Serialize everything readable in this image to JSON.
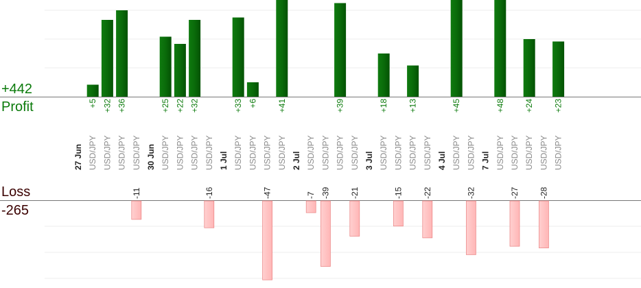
{
  "summary": {
    "profit_total": "+442",
    "profit_label": "Profit",
    "loss_label": "Loss",
    "loss_total": "-265"
  },
  "colors": {
    "profit_bar": "#0a6b0a",
    "profit_text": "#0a7a0a",
    "loss_bar": "#ffb6b6",
    "loss_bar_border": "#e98080",
    "loss_text": "#3a0000",
    "date_text": "#222222",
    "pair_text": "#8a8a8a",
    "grid": "#eeeeee",
    "axis": "#777777"
  },
  "chart_data": {
    "type": "bar",
    "columns": [
      {
        "label": "27 Jun",
        "kind": "date"
      },
      {
        "label": "USD/JPY",
        "kind": "pair",
        "value": 5
      },
      {
        "label": "USD/JPY",
        "kind": "pair",
        "value": 32
      },
      {
        "label": "USD/JPY",
        "kind": "pair",
        "value": 36
      },
      {
        "label": "USD/JPY",
        "kind": "pair",
        "value": -11
      },
      {
        "label": "30 Jun",
        "kind": "date"
      },
      {
        "label": "USD/JPY",
        "kind": "pair",
        "value": 25
      },
      {
        "label": "USD/JPY",
        "kind": "pair",
        "value": 22
      },
      {
        "label": "USD/JPY",
        "kind": "pair",
        "value": 32
      },
      {
        "label": "USD/JPY",
        "kind": "pair",
        "value": -16
      },
      {
        "label": "1 Jul",
        "kind": "date"
      },
      {
        "label": "USD/JPY",
        "kind": "pair",
        "value": 33
      },
      {
        "label": "USD/JPY",
        "kind": "pair",
        "value": 6
      },
      {
        "label": "USD/JPY",
        "kind": "pair",
        "value": -47
      },
      {
        "label": "USD/JPY",
        "kind": "pair",
        "value": 41
      },
      {
        "label": "2 Jul",
        "kind": "date"
      },
      {
        "label": "USD/JPY",
        "kind": "pair",
        "value": -7
      },
      {
        "label": "USD/JPY",
        "kind": "pair",
        "value": -39
      },
      {
        "label": "USD/JPY",
        "kind": "pair",
        "value": 39
      },
      {
        "label": "USD/JPY",
        "kind": "pair",
        "value": -21
      },
      {
        "label": "3 Jul",
        "kind": "date"
      },
      {
        "label": "USD/JPY",
        "kind": "pair",
        "value": 18
      },
      {
        "label": "USD/JPY",
        "kind": "pair",
        "value": -15
      },
      {
        "label": "USD/JPY",
        "kind": "pair",
        "value": 13
      },
      {
        "label": "USD/JPY",
        "kind": "pair",
        "value": -22
      },
      {
        "label": "4 Jul",
        "kind": "date"
      },
      {
        "label": "USD/JPY",
        "kind": "pair",
        "value": 45
      },
      {
        "label": "USD/JPY",
        "kind": "pair",
        "value": -32
      },
      {
        "label": "7 Jul",
        "kind": "date"
      },
      {
        "label": "USD/JPY",
        "kind": "pair",
        "value": 48
      },
      {
        "label": "USD/JPY",
        "kind": "pair",
        "value": -27
      },
      {
        "label": "USD/JPY",
        "kind": "pair",
        "value": 24
      },
      {
        "label": "USD/JPY",
        "kind": "pair",
        "value": -28
      },
      {
        "label": "USD/JPY",
        "kind": "pair",
        "value": 23
      }
    ],
    "grid": true,
    "profit_axis_max": 48,
    "loss_axis_max": 47
  }
}
